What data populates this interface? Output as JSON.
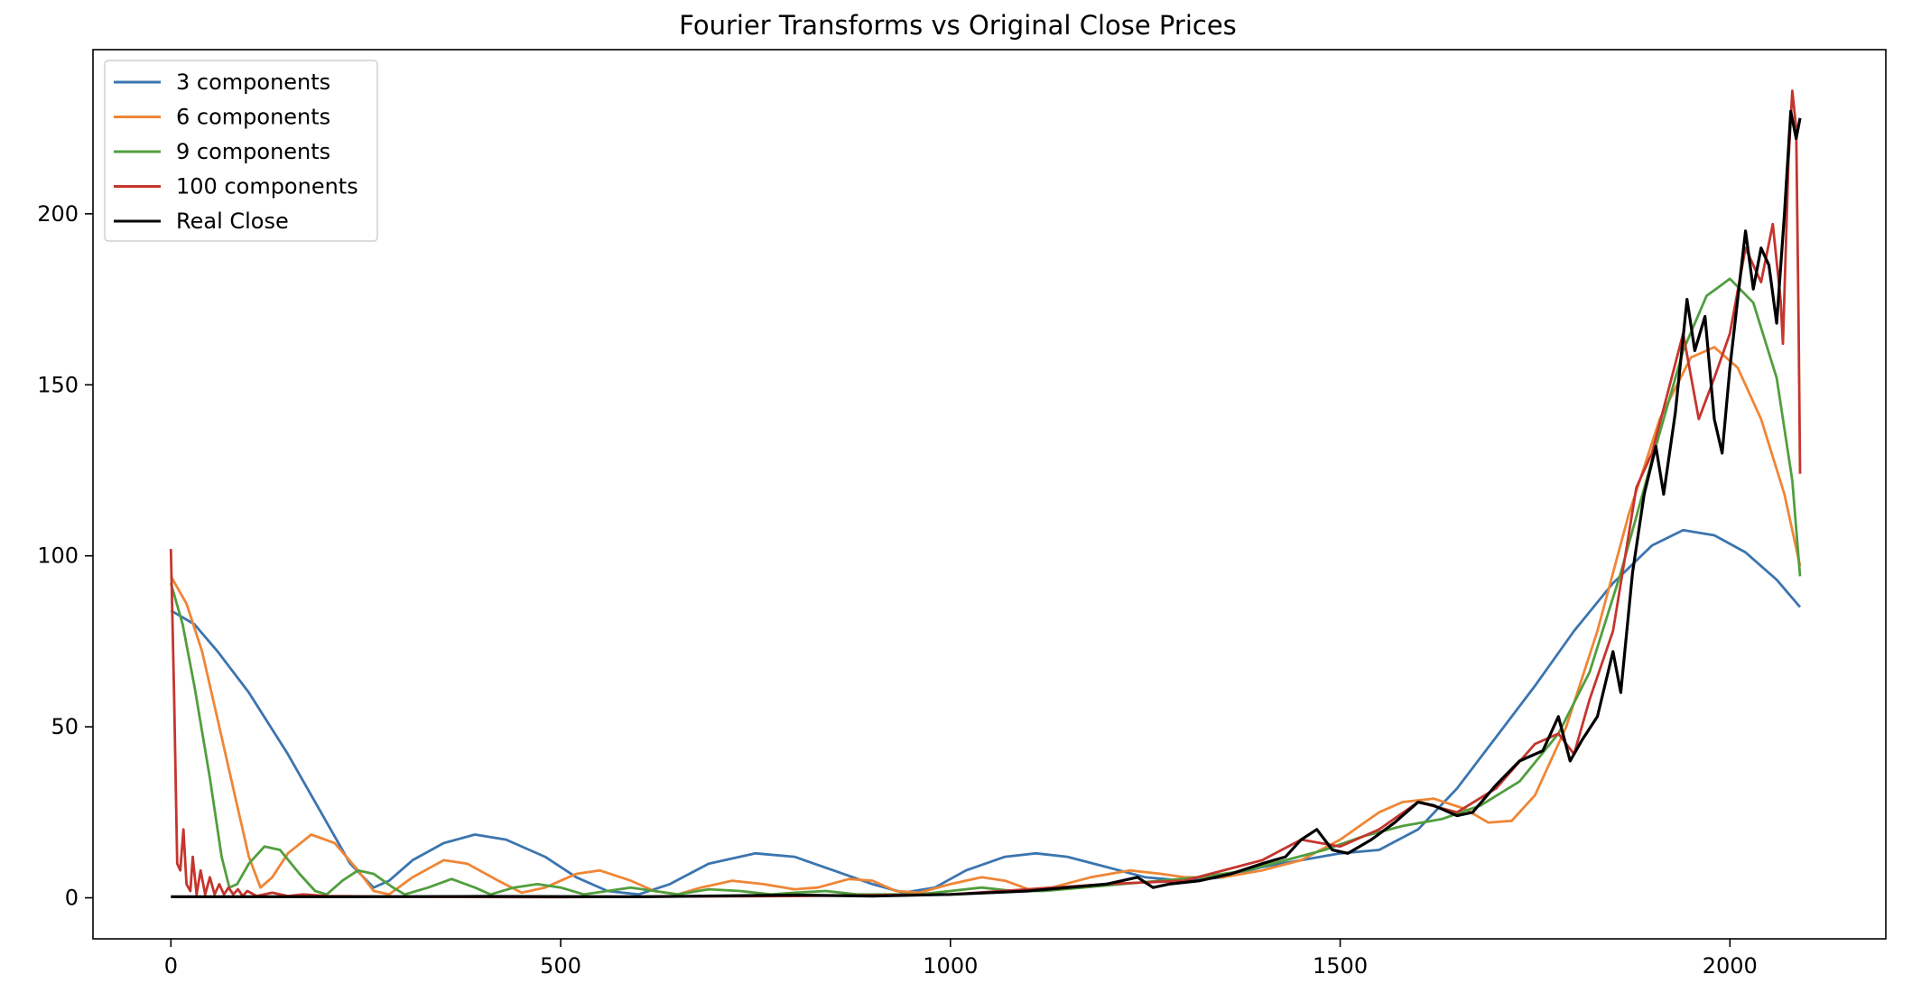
{
  "chart_data": {
    "type": "line",
    "title": "Fourier Transforms vs Original Close Prices",
    "xlabel": "",
    "ylabel": "",
    "xlim": [
      -100,
      2200
    ],
    "ylim": [
      -12,
      248
    ],
    "xticks": [
      0,
      500,
      1000,
      1500,
      2000
    ],
    "yticks": [
      0,
      50,
      100,
      150,
      200
    ],
    "xtick_labels": [
      "0",
      "500",
      "1000",
      "1500",
      "2000"
    ],
    "ytick_labels": [
      "0",
      "50",
      "100",
      "150",
      "200"
    ],
    "grid": false,
    "legend_position": "top-left",
    "series": [
      {
        "name": "3 components",
        "color": "#3b75af",
        "points": [
          [
            0,
            84
          ],
          [
            30,
            80
          ],
          [
            60,
            72
          ],
          [
            100,
            60
          ],
          [
            150,
            42
          ],
          [
            200,
            22
          ],
          [
            230,
            10
          ],
          [
            260,
            3
          ],
          [
            280,
            5
          ],
          [
            310,
            11
          ],
          [
            350,
            16
          ],
          [
            390,
            18.5
          ],
          [
            430,
            17
          ],
          [
            480,
            12
          ],
          [
            520,
            6
          ],
          [
            560,
            2
          ],
          [
            600,
            1
          ],
          [
            640,
            4
          ],
          [
            690,
            10
          ],
          [
            750,
            13
          ],
          [
            800,
            12
          ],
          [
            850,
            8
          ],
          [
            900,
            4
          ],
          [
            940,
            1.5
          ],
          [
            980,
            3
          ],
          [
            1020,
            8
          ],
          [
            1070,
            12
          ],
          [
            1110,
            13
          ],
          [
            1150,
            12
          ],
          [
            1200,
            9
          ],
          [
            1250,
            6
          ],
          [
            1300,
            5
          ],
          [
            1350,
            6
          ],
          [
            1400,
            9
          ],
          [
            1450,
            11
          ],
          [
            1500,
            13
          ],
          [
            1550,
            14
          ],
          [
            1600,
            20
          ],
          [
            1650,
            32
          ],
          [
            1700,
            47
          ],
          [
            1750,
            62
          ],
          [
            1800,
            78
          ],
          [
            1850,
            92
          ],
          [
            1900,
            103
          ],
          [
            1940,
            107.5
          ],
          [
            1980,
            106
          ],
          [
            2020,
            101
          ],
          [
            2060,
            93
          ],
          [
            2090,
            85
          ]
        ]
      },
      {
        "name": "6 components",
        "color": "#ef8636",
        "points": [
          [
            0,
            94
          ],
          [
            20,
            86
          ],
          [
            40,
            72
          ],
          [
            60,
            52
          ],
          [
            80,
            32
          ],
          [
            100,
            12
          ],
          [
            115,
            3
          ],
          [
            130,
            6
          ],
          [
            150,
            13
          ],
          [
            180,
            18.5
          ],
          [
            210,
            16
          ],
          [
            240,
            8
          ],
          [
            260,
            2
          ],
          [
            280,
            1
          ],
          [
            310,
            6
          ],
          [
            350,
            11
          ],
          [
            380,
            10
          ],
          [
            420,
            5
          ],
          [
            450,
            1.5
          ],
          [
            480,
            3
          ],
          [
            520,
            7
          ],
          [
            550,
            8
          ],
          [
            590,
            5
          ],
          [
            620,
            2
          ],
          [
            650,
            1
          ],
          [
            680,
            3
          ],
          [
            720,
            5
          ],
          [
            760,
            4
          ],
          [
            800,
            2.5
          ],
          [
            830,
            3
          ],
          [
            870,
            5.5
          ],
          [
            900,
            5
          ],
          [
            930,
            2
          ],
          [
            960,
            1.5
          ],
          [
            1000,
            4
          ],
          [
            1040,
            6
          ],
          [
            1070,
            5
          ],
          [
            1100,
            2.5
          ],
          [
            1130,
            3
          ],
          [
            1180,
            6
          ],
          [
            1230,
            8
          ],
          [
            1270,
            7
          ],
          [
            1300,
            6
          ],
          [
            1350,
            6
          ],
          [
            1400,
            8
          ],
          [
            1450,
            11
          ],
          [
            1500,
            17
          ],
          [
            1550,
            25
          ],
          [
            1580,
            28
          ],
          [
            1620,
            29
          ],
          [
            1660,
            26
          ],
          [
            1690,
            22
          ],
          [
            1720,
            22.5
          ],
          [
            1750,
            30
          ],
          [
            1790,
            50
          ],
          [
            1830,
            78
          ],
          [
            1870,
            112
          ],
          [
            1910,
            140
          ],
          [
            1950,
            158
          ],
          [
            1980,
            161
          ],
          [
            2010,
            155
          ],
          [
            2040,
            140
          ],
          [
            2070,
            118
          ],
          [
            2090,
            97
          ]
        ]
      },
      {
        "name": "9 components",
        "color": "#519e3e",
        "points": [
          [
            0,
            92
          ],
          [
            15,
            80
          ],
          [
            30,
            62
          ],
          [
            50,
            35
          ],
          [
            65,
            12
          ],
          [
            75,
            3
          ],
          [
            85,
            4
          ],
          [
            100,
            10
          ],
          [
            120,
            15
          ],
          [
            140,
            14
          ],
          [
            165,
            7
          ],
          [
            185,
            2
          ],
          [
            200,
            1
          ],
          [
            220,
            5
          ],
          [
            240,
            8
          ],
          [
            260,
            7
          ],
          [
            285,
            3
          ],
          [
            300,
            1
          ],
          [
            330,
            3
          ],
          [
            360,
            5.5
          ],
          [
            390,
            3
          ],
          [
            410,
            1
          ],
          [
            440,
            3
          ],
          [
            470,
            4
          ],
          [
            500,
            3
          ],
          [
            530,
            1
          ],
          [
            560,
            2
          ],
          [
            590,
            3
          ],
          [
            620,
            2
          ],
          [
            650,
            1
          ],
          [
            690,
            2.5
          ],
          [
            730,
            2
          ],
          [
            770,
            1
          ],
          [
            800,
            1.5
          ],
          [
            840,
            2
          ],
          [
            880,
            1
          ],
          [
            920,
            1
          ],
          [
            960,
            1
          ],
          [
            1000,
            2
          ],
          [
            1040,
            3
          ],
          [
            1080,
            2
          ],
          [
            1120,
            2
          ],
          [
            1170,
            3
          ],
          [
            1220,
            4
          ],
          [
            1270,
            5
          ],
          [
            1320,
            6
          ],
          [
            1380,
            8
          ],
          [
            1430,
            11
          ],
          [
            1480,
            14
          ],
          [
            1530,
            18
          ],
          [
            1580,
            21
          ],
          [
            1630,
            23
          ],
          [
            1680,
            27
          ],
          [
            1730,
            34
          ],
          [
            1780,
            48
          ],
          [
            1820,
            66
          ],
          [
            1860,
            95
          ],
          [
            1900,
            128
          ],
          [
            1940,
            160
          ],
          [
            1970,
            176
          ],
          [
            2000,
            181
          ],
          [
            2030,
            174
          ],
          [
            2060,
            152
          ],
          [
            2080,
            122
          ],
          [
            2090,
            94
          ]
        ]
      },
      {
        "name": "100 components",
        "color": "#c5352e",
        "points": [
          [
            0,
            102
          ],
          [
            4,
            60
          ],
          [
            8,
            10
          ],
          [
            12,
            8
          ],
          [
            16,
            20
          ],
          [
            20,
            4
          ],
          [
            25,
            2
          ],
          [
            28,
            12
          ],
          [
            33,
            1
          ],
          [
            38,
            8
          ],
          [
            44,
            1
          ],
          [
            50,
            6
          ],
          [
            56,
            1
          ],
          [
            62,
            4
          ],
          [
            68,
            1
          ],
          [
            74,
            3
          ],
          [
            80,
            1
          ],
          [
            86,
            2.5
          ],
          [
            92,
            0.5
          ],
          [
            98,
            2
          ],
          [
            110,
            0.5
          ],
          [
            130,
            1.5
          ],
          [
            150,
            0.5
          ],
          [
            170,
            1
          ],
          [
            200,
            0.5
          ],
          [
            300,
            0.3
          ],
          [
            500,
            0.2
          ],
          [
            800,
            0.5
          ],
          [
            1000,
            1
          ],
          [
            1200,
            4
          ],
          [
            1300,
            5
          ],
          [
            1400,
            11
          ],
          [
            1450,
            17
          ],
          [
            1500,
            15
          ],
          [
            1550,
            20
          ],
          [
            1600,
            28
          ],
          [
            1650,
            25
          ],
          [
            1700,
            32
          ],
          [
            1750,
            45
          ],
          [
            1780,
            48
          ],
          [
            1800,
            42
          ],
          [
            1820,
            58
          ],
          [
            1850,
            78
          ],
          [
            1880,
            120
          ],
          [
            1900,
            130
          ],
          [
            1940,
            165
          ],
          [
            1960,
            140
          ],
          [
            1980,
            152
          ],
          [
            2000,
            165
          ],
          [
            2020,
            190
          ],
          [
            2040,
            180
          ],
          [
            2055,
            197
          ],
          [
            2065,
            175
          ],
          [
            2068,
            162
          ],
          [
            2075,
            215
          ],
          [
            2080,
            236
          ],
          [
            2085,
            225
          ],
          [
            2088,
            170
          ],
          [
            2090,
            124
          ]
        ]
      },
      {
        "name": "Real Close",
        "color": "#000000",
        "points": [
          [
            0,
            0.3
          ],
          [
            200,
            0.3
          ],
          [
            400,
            0.4
          ],
          [
            600,
            0.3
          ],
          [
            800,
            0.8
          ],
          [
            900,
            0.5
          ],
          [
            1000,
            1
          ],
          [
            1100,
            2
          ],
          [
            1150,
            3
          ],
          [
            1200,
            4
          ],
          [
            1240,
            6
          ],
          [
            1260,
            3
          ],
          [
            1280,
            4
          ],
          [
            1320,
            5
          ],
          [
            1360,
            7
          ],
          [
            1400,
            10
          ],
          [
            1430,
            12
          ],
          [
            1450,
            17
          ],
          [
            1470,
            20
          ],
          [
            1490,
            14
          ],
          [
            1510,
            13
          ],
          [
            1540,
            17
          ],
          [
            1570,
            22
          ],
          [
            1600,
            28
          ],
          [
            1620,
            27
          ],
          [
            1650,
            24
          ],
          [
            1670,
            25
          ],
          [
            1700,
            33
          ],
          [
            1730,
            40
          ],
          [
            1760,
            43
          ],
          [
            1780,
            53
          ],
          [
            1795,
            40
          ],
          [
            1810,
            46
          ],
          [
            1830,
            53
          ],
          [
            1850,
            72
          ],
          [
            1860,
            60
          ],
          [
            1875,
            95
          ],
          [
            1890,
            118
          ],
          [
            1905,
            132
          ],
          [
            1915,
            118
          ],
          [
            1930,
            142
          ],
          [
            1945,
            175
          ],
          [
            1955,
            160
          ],
          [
            1968,
            170
          ],
          [
            1980,
            140
          ],
          [
            1990,
            130
          ],
          [
            2000,
            155
          ],
          [
            2010,
            175
          ],
          [
            2020,
            195
          ],
          [
            2030,
            178
          ],
          [
            2040,
            190
          ],
          [
            2050,
            185
          ],
          [
            2060,
            168
          ],
          [
            2070,
            200
          ],
          [
            2078,
            230
          ],
          [
            2085,
            222
          ],
          [
            2090,
            228
          ]
        ]
      }
    ]
  }
}
